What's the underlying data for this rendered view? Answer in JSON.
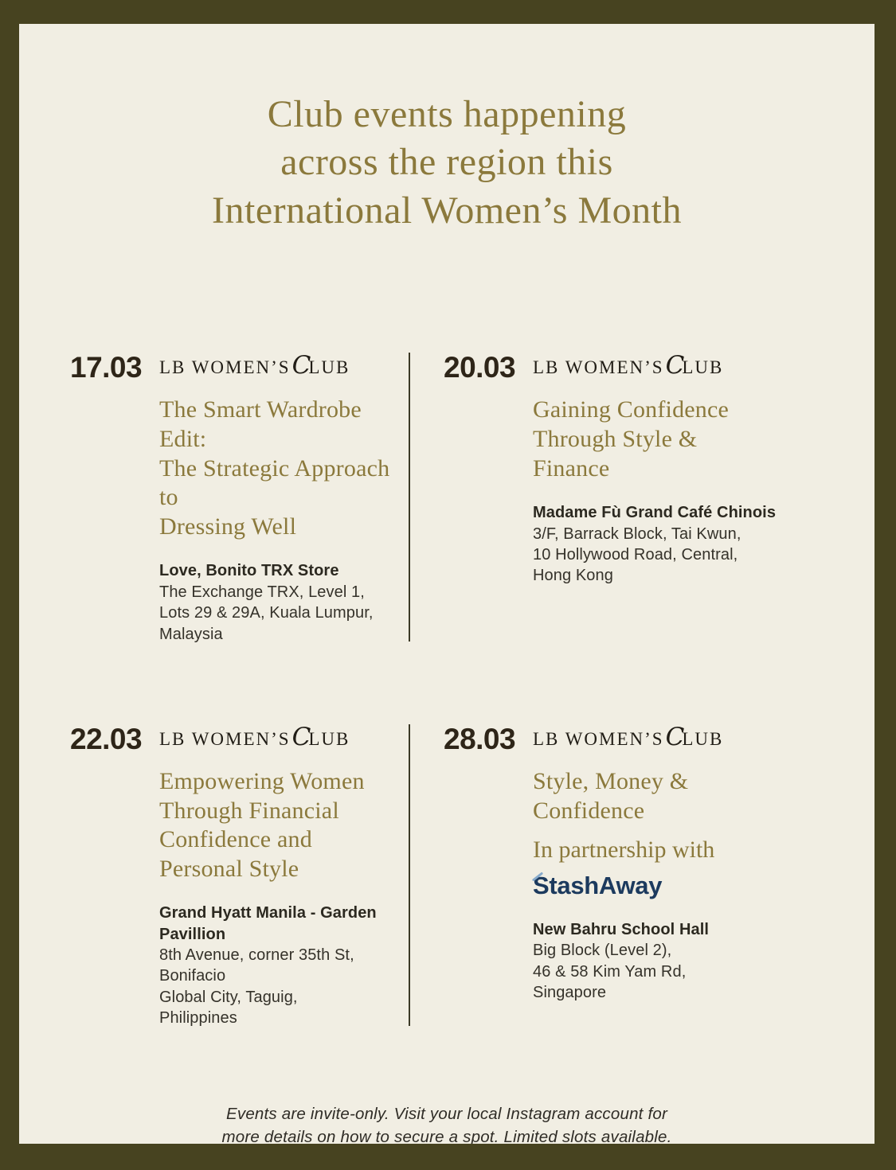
{
  "poster": {
    "title_lines": [
      "Club events happening",
      "across the region this",
      "International Women’s Month"
    ],
    "footer_lines": [
      "Events are invite-only. Visit your local Instagram account for",
      "more details on how to secure a spot. Limited slots available."
    ]
  },
  "logo": {
    "prefix": "LB WOMEN’S",
    "script_c": "C",
    "suffix": "LUB"
  },
  "colors": {
    "frame": "#474320",
    "background": "#f1eee3",
    "accent_gold": "#8b793c",
    "date_dark": "#2e2518",
    "stashaway_navy": "#1c3a5e"
  },
  "events": [
    {
      "date": "17.03",
      "title_lines": [
        "The Smart Wardrobe Edit:",
        "The Strategic Approach to",
        "Dressing Well"
      ],
      "venue": "Love, Bonito TRX Store",
      "address_lines": [
        "The Exchange TRX, Level 1,",
        "Lots 29 & 29A, Kuala Lumpur,",
        "Malaysia"
      ]
    },
    {
      "date": "20.03",
      "title_lines": [
        "Gaining Confidence",
        "Through Style &",
        "Finance"
      ],
      "venue": "Madame Fù Grand Café Chinois",
      "address_lines": [
        "3/F, Barrack Block, Tai Kwun,",
        "10 Hollywood Road, Central,",
        "Hong Kong"
      ]
    },
    {
      "date": "22.03",
      "title_lines": [
        "Empowering Women",
        "Through Financial",
        "Confidence and",
        "Personal Style"
      ],
      "venue": "Grand Hyatt Manila - Garden Pavillion",
      "address_lines": [
        "8th Avenue, corner 35th St, Bonifacio",
        "Global City, Taguig,",
        "Philippines"
      ]
    },
    {
      "date": "28.03",
      "title_lines": [
        "Style, Money &",
        "Confidence"
      ],
      "partnership_text": "In partnership with",
      "partner_logo": "StashAway",
      "venue": "New Bahru School Hall",
      "address_lines": [
        "Big Block (Level 2),",
        "46 & 58 Kim Yam Rd,",
        "Singapore"
      ]
    }
  ]
}
